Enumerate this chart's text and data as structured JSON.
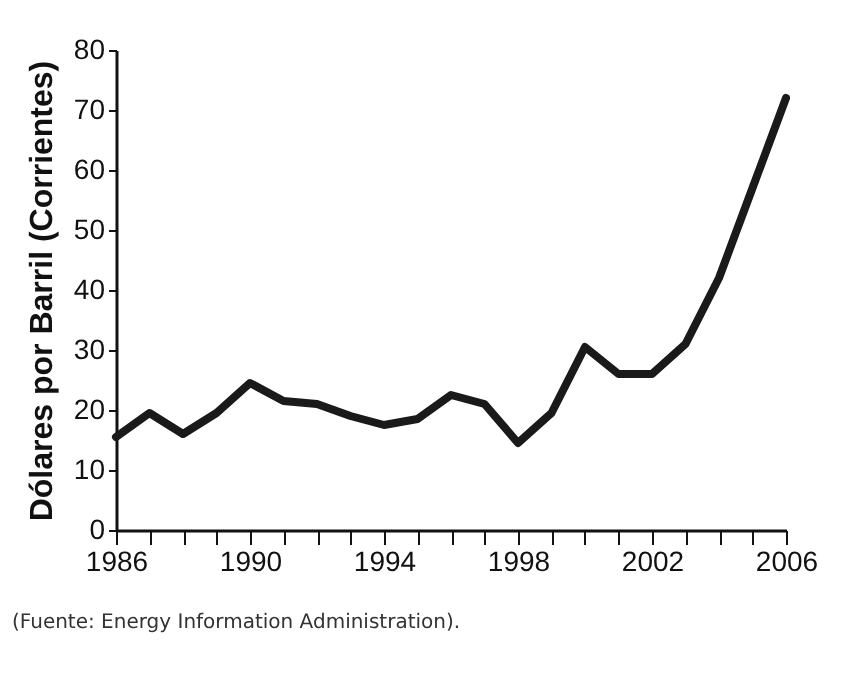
{
  "chart_data": {
    "type": "line",
    "ylabel": "Dólares por Barril (Corrientes)",
    "x": [
      1986,
      1987,
      1988,
      1989,
      1990,
      1991,
      1992,
      1993,
      1994,
      1995,
      1996,
      1997,
      1998,
      1999,
      2000,
      2001,
      2002,
      2003,
      2004,
      2005,
      2006
    ],
    "series": [
      {
        "color": "#1a1a1a",
        "values": [
          15.5,
          19.5,
          16,
          19.5,
          24.5,
          21.5,
          21,
          19,
          17.5,
          18.5,
          22.5,
          21,
          14.5,
          19.5,
          30.5,
          26,
          26,
          31,
          42,
          57,
          72
        ]
      }
    ],
    "xlim": [
      1986,
      2006
    ],
    "xticks": [
      {
        "value": 1986,
        "label": "1986"
      },
      {
        "value": 1987,
        "label": null
      },
      {
        "value": 1988,
        "label": null
      },
      {
        "value": 1989,
        "label": null
      },
      {
        "value": 1990,
        "label": "1990"
      },
      {
        "value": 1991,
        "label": null
      },
      {
        "value": 1992,
        "label": null
      },
      {
        "value": 1993,
        "label": null
      },
      {
        "value": 1994,
        "label": "1994"
      },
      {
        "value": 1995,
        "label": null
      },
      {
        "value": 1996,
        "label": null
      },
      {
        "value": 1997,
        "label": null
      },
      {
        "value": 1998,
        "label": "1998"
      },
      {
        "value": 1999,
        "label": null
      },
      {
        "value": 2000,
        "label": null
      },
      {
        "value": 2001,
        "label": null
      },
      {
        "value": 2002,
        "label": "2002"
      },
      {
        "value": 2003,
        "label": null
      },
      {
        "value": 2004,
        "label": null
      },
      {
        "value": 2005,
        "label": null
      },
      {
        "value": 2006,
        "label": "2006"
      }
    ],
    "ylim": [
      0,
      80
    ],
    "yticks": [
      0,
      10,
      20,
      30,
      40,
      50,
      60,
      70,
      80
    ],
    "grid": false,
    "annotations": [
      "(Fuente: Energy Information Administration)."
    ]
  }
}
